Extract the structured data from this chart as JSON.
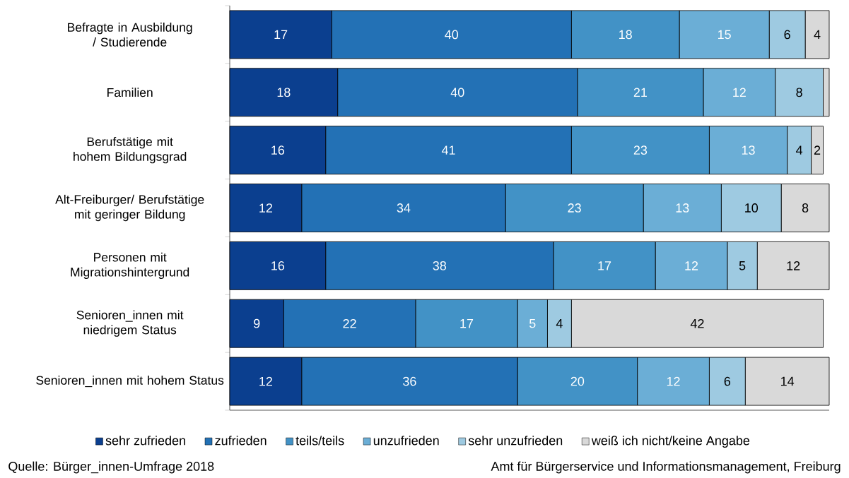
{
  "chart_data": {
    "type": "bar",
    "orientation": "horizontal",
    "stacked": true,
    "categories": [
      "Befragte in Ausbildung / Studierende",
      "Familien",
      "Berufstätige mit hohem Bildungsgrad",
      "Alt-Freiburger/ Berufstätige mit geringer Bildung",
      "Personen mit Migrationshintergrund",
      "Senioren_innen mit niedrigem Status",
      "Senioren_innen mit hohem Status"
    ],
    "series": [
      {
        "name": "sehr zufrieden",
        "color": "#0b3f8f",
        "values": [
          17,
          18,
          16,
          12,
          16,
          9,
          12
        ],
        "value_labels": [
          "17",
          "18",
          "16",
          "12",
          "16",
          "9",
          "12"
        ]
      },
      {
        "name": "zufrieden",
        "color": "#2371b5",
        "values": [
          40,
          40,
          41,
          34,
          38,
          22,
          36
        ],
        "value_labels": [
          "40",
          "40",
          "41",
          "34",
          "38",
          "22",
          "36"
        ]
      },
      {
        "name": "teils/teils",
        "color": "#4292c6",
        "values": [
          18,
          21,
          23,
          23,
          17,
          17,
          20
        ],
        "value_labels": [
          "18",
          "21",
          "23",
          "23",
          "17",
          "17",
          "20"
        ]
      },
      {
        "name": "unzufrieden",
        "color": "#6baed6",
        "values": [
          15,
          12,
          13,
          13,
          12,
          5,
          12
        ],
        "value_labels": [
          "15",
          "12",
          "13",
          "13",
          "12",
          "5",
          "12"
        ]
      },
      {
        "name": "sehr unzufrieden",
        "color": "#9ecae1",
        "values": [
          6,
          8,
          4,
          10,
          5,
          4,
          6
        ],
        "value_labels": [
          "6",
          "8",
          "4",
          "10",
          "5",
          "4",
          "6"
        ]
      },
      {
        "name": "weiß ich nicht/keine Angabe",
        "color": "#d9d9d9",
        "values": [
          4,
          1,
          2,
          8,
          12,
          42,
          14
        ],
        "value_labels": [
          "4",
          null,
          "2",
          "8",
          "12",
          "42",
          "14"
        ]
      }
    ],
    "legend": "bottom",
    "tick_labels": "y",
    "grid": false,
    "annotations": [
      "Quelle:  Bürger_innen-Umfrage 2018",
      "Amt für Bürgerservice und Informationsmanagement, Freiburg"
    ]
  }
}
